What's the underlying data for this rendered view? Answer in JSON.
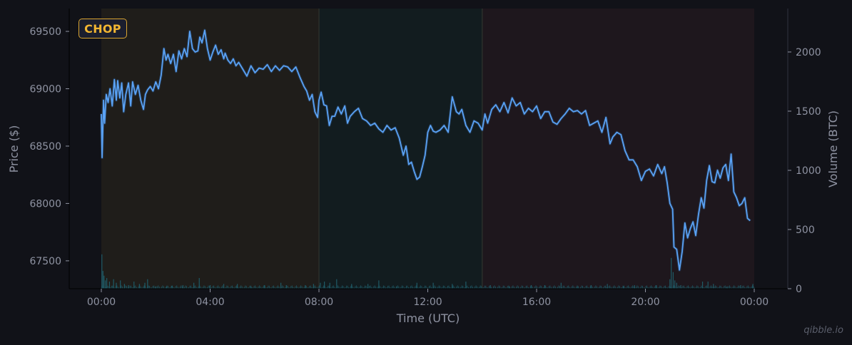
{
  "badge": {
    "label": "CHOP",
    "color": "#f2b632",
    "border": "#d9a430"
  },
  "watermark": "qibble.io",
  "colors": {
    "background": "#111218",
    "price_line": "#5aa2f5",
    "volume_bars": "#1f5a66",
    "tick_text": "#8f93a2",
    "region_1": "#1f1d1a",
    "region_2": "#121c1f",
    "region_3": "#1e171d"
  },
  "chart_data": {
    "type": "line",
    "title": "",
    "xlabel": "Time (UTC)",
    "ylabel": "Price ($)",
    "y2label": "Volume (BTC)",
    "x_ticks": [
      "00:00",
      "04:00",
      "08:00",
      "12:00",
      "16:00",
      "20:00",
      "00:00"
    ],
    "y_ticks": [
      67500,
      68000,
      68500,
      69000,
      69500
    ],
    "y2_ticks": [
      0,
      500,
      1000,
      1500,
      2000
    ],
    "ylim": [
      67257,
      69699
    ],
    "y2lim": [
      0,
      2367
    ],
    "xlim_hours": [
      -1.2,
      25.2
    ],
    "grid": false,
    "regions": [
      {
        "label": "CHOP",
        "start_hour": 0,
        "end_hour": 8,
        "color": "#1f1d1a"
      },
      {
        "label": "",
        "start_hour": 8,
        "end_hour": 14,
        "color": "#121c1f"
      },
      {
        "label": "",
        "start_hour": 14,
        "end_hour": 24,
        "color": "#1e171d"
      }
    ],
    "series": [
      {
        "name": "Price",
        "x_hours": [
          0.0,
          0.03,
          0.08,
          0.12,
          0.18,
          0.25,
          0.32,
          0.4,
          0.48,
          0.55,
          0.6,
          0.68,
          0.75,
          0.82,
          0.9,
          1.0,
          1.08,
          1.15,
          1.25,
          1.35,
          1.45,
          1.55,
          1.62,
          1.7,
          1.8,
          1.9,
          2.0,
          2.1,
          2.2,
          2.3,
          2.38,
          2.45,
          2.55,
          2.65,
          2.75,
          2.85,
          2.95,
          3.05,
          3.15,
          3.25,
          3.35,
          3.45,
          3.55,
          3.62,
          3.7,
          3.8,
          3.9,
          4.0,
          4.1,
          4.2,
          4.3,
          4.4,
          4.5,
          4.55,
          4.65,
          4.75,
          4.85,
          4.95,
          5.05,
          5.2,
          5.35,
          5.5,
          5.65,
          5.8,
          5.95,
          6.1,
          6.25,
          6.4,
          6.55,
          6.7,
          6.85,
          7.0,
          7.15,
          7.3,
          7.45,
          7.55,
          7.65,
          7.75,
          7.85,
          7.95,
          8.0,
          8.08,
          8.18,
          8.28,
          8.38,
          8.48,
          8.58,
          8.7,
          8.82,
          8.95,
          9.05,
          9.15,
          9.3,
          9.45,
          9.6,
          9.75,
          9.9,
          10.05,
          10.2,
          10.35,
          10.5,
          10.65,
          10.8,
          10.95,
          11.1,
          11.2,
          11.3,
          11.4,
          11.5,
          11.6,
          11.7,
          11.8,
          11.9,
          12.0,
          12.1,
          12.2,
          12.3,
          12.45,
          12.6,
          12.75,
          12.9,
          13.05,
          13.15,
          13.25,
          13.4,
          13.55,
          13.7,
          13.85,
          14.0,
          14.1,
          14.2,
          14.35,
          14.5,
          14.65,
          14.8,
          14.95,
          15.1,
          15.25,
          15.4,
          15.55,
          15.7,
          15.85,
          16.0,
          16.15,
          16.3,
          16.45,
          16.6,
          16.75,
          16.9,
          17.05,
          17.2,
          17.35,
          17.5,
          17.65,
          17.8,
          17.95,
          18.1,
          18.25,
          18.4,
          18.55,
          18.7,
          18.8,
          18.95,
          19.1,
          19.25,
          19.4,
          19.55,
          19.7,
          19.85,
          20.0,
          20.15,
          20.3,
          20.45,
          20.6,
          20.7,
          20.8,
          20.9,
          21.0,
          21.05,
          21.15,
          21.25,
          21.35,
          21.45,
          21.55,
          21.65,
          21.75,
          21.85,
          21.95,
          22.05,
          22.15,
          22.25,
          22.35,
          22.45,
          22.55,
          22.65,
          22.75,
          22.85,
          22.95,
          23.05,
          23.15,
          23.25,
          23.35,
          23.45,
          23.55,
          23.65,
          23.75,
          23.85,
          23.95,
          24.0
        ],
        "values": [
          68780,
          68400,
          68900,
          68700,
          68950,
          68880,
          69000,
          68850,
          69080,
          68900,
          69070,
          68920,
          69050,
          68800,
          68950,
          69050,
          68850,
          69060,
          68950,
          69030,
          68900,
          68820,
          68950,
          68990,
          69020,
          68980,
          69060,
          69000,
          69120,
          69350,
          69250,
          69300,
          69220,
          69300,
          69150,
          69330,
          69260,
          69350,
          69280,
          69500,
          69350,
          69320,
          69330,
          69450,
          69400,
          69510,
          69350,
          69250,
          69320,
          69380,
          69300,
          69340,
          69260,
          69310,
          69250,
          69220,
          69260,
          69200,
          69230,
          69170,
          69110,
          69200,
          69140,
          69180,
          69170,
          69210,
          69150,
          69200,
          69160,
          69200,
          69190,
          69150,
          69190,
          69100,
          69020,
          68980,
          68900,
          68950,
          68800,
          68750,
          68900,
          68970,
          68860,
          68850,
          68680,
          68760,
          68760,
          68840,
          68780,
          68850,
          68700,
          68760,
          68800,
          68830,
          68740,
          68720,
          68680,
          68700,
          68650,
          68620,
          68680,
          68640,
          68660,
          68570,
          68420,
          68500,
          68340,
          68360,
          68280,
          68210,
          68230,
          68320,
          68420,
          68620,
          68680,
          68630,
          68620,
          68640,
          68680,
          68620,
          68930,
          68800,
          68780,
          68820,
          68680,
          68620,
          68720,
          68700,
          68640,
          68780,
          68700,
          68820,
          68860,
          68800,
          68880,
          68790,
          68920,
          68850,
          68880,
          68780,
          68830,
          68800,
          68850,
          68740,
          68800,
          68800,
          68710,
          68690,
          68740,
          68780,
          68830,
          68800,
          68810,
          68780,
          68810,
          68680,
          68700,
          68720,
          68620,
          68750,
          68520,
          68580,
          68620,
          68600,
          68460,
          68380,
          68380,
          68320,
          68200,
          68280,
          68300,
          68240,
          68340,
          68260,
          68320,
          68180,
          68000,
          67950,
          67620,
          67600,
          67420,
          67580,
          67830,
          67700,
          67780,
          67840,
          67720,
          67900,
          68050,
          67960,
          68200,
          68330,
          68190,
          68180,
          68290,
          68220,
          68310,
          68340,
          68200,
          68430,
          68100,
          68050,
          67980,
          68000,
          68050,
          67870,
          67850
        ]
      },
      {
        "name": "Volume",
        "type": "bar",
        "axis": "right",
        "x_hours": [
          0.02,
          0.06,
          0.1,
          0.15,
          0.2,
          0.3,
          0.45,
          0.55,
          0.7,
          0.85,
          1.0,
          1.2,
          1.4,
          1.6,
          1.7,
          2.0,
          2.4,
          2.6,
          3.0,
          3.4,
          3.6,
          4.0,
          4.5,
          5.0,
          5.5,
          6.0,
          6.6,
          6.8,
          7.5,
          7.8,
          8.05,
          8.2,
          8.4,
          8.65,
          9.2,
          9.8,
          10.2,
          10.85,
          11.6,
          12.2,
          12.9,
          13.4,
          14.3,
          15.0,
          15.8,
          16.3,
          16.9,
          17.5,
          18.0,
          18.6,
          19.2,
          19.6,
          20.4,
          20.9,
          20.95,
          21.02,
          21.08,
          21.15,
          21.3,
          22.1,
          22.3,
          22.5,
          23.0,
          23.5,
          23.95
        ],
        "values": [
          290,
          150,
          110,
          70,
          90,
          60,
          80,
          50,
          70,
          40,
          30,
          60,
          40,
          50,
          80,
          20,
          20,
          25,
          30,
          50,
          90,
          30,
          40,
          40,
          20,
          30,
          50,
          30,
          30,
          40,
          50,
          60,
          50,
          80,
          40,
          40,
          70,
          20,
          50,
          50,
          40,
          60,
          30,
          20,
          30,
          30,
          50,
          20,
          30,
          40,
          20,
          30,
          30,
          80,
          260,
          140,
          70,
          50,
          30,
          60,
          60,
          40,
          20,
          30,
          40
        ]
      }
    ],
    "legend": {
      "show": false
    }
  }
}
